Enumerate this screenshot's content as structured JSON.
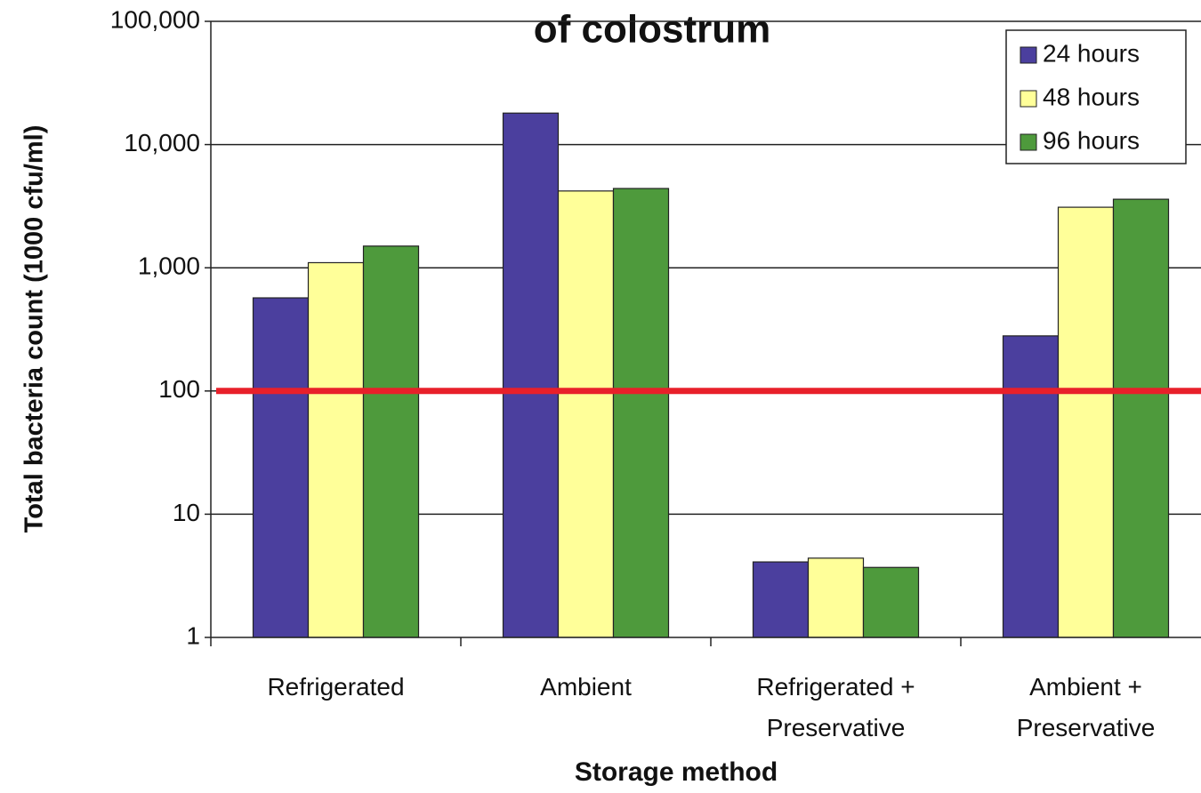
{
  "chart_data": {
    "type": "bar",
    "title": "of colostrum",
    "x_label": "Storage method",
    "y_label": "Total bacteria count (1000 cfu/ml)",
    "categories": [
      [
        "Refrigerated"
      ],
      [
        "Ambient"
      ],
      [
        "Refrigerated +",
        "Preservative"
      ],
      [
        "Ambient +",
        "Preservative"
      ]
    ],
    "series": [
      {
        "name": "24 hours",
        "color": "#4b3f9e",
        "values": [
          570,
          18000,
          4.1,
          280
        ]
      },
      {
        "name": "48 hours",
        "color": "#ffff99",
        "values": [
          1100,
          4200,
          4.4,
          3100
        ]
      },
      {
        "name": "96 hours",
        "color": "#4e9a3c",
        "values": [
          1500,
          4400,
          3.7,
          3600
        ]
      }
    ],
    "log_scale": true,
    "ylim": [
      1,
      100000
    ],
    "yticks": [
      1,
      10,
      100,
      {
        "value": 1000,
        "label": "1,000"
      },
      {
        "value": 10000,
        "label": "10,000"
      },
      {
        "value": 100000,
        "label": "100,000"
      }
    ],
    "grid": true,
    "legend": "top-right",
    "reference_line": {
      "value": 100,
      "color": "#e8202a"
    }
  }
}
